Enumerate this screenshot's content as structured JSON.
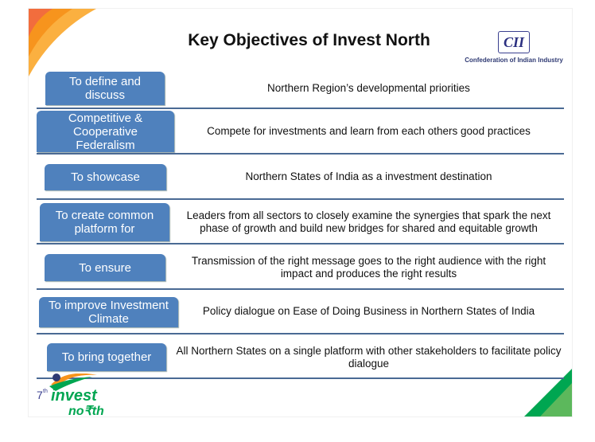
{
  "title": "Key Objectives of Invest North",
  "cii_logo": {
    "text": "CII",
    "caption": "Confederation of Indian Industry"
  },
  "objectives": [
    {
      "label": "To define and discuss",
      "description": "Northern Region’s developmental priorities"
    },
    {
      "label": "Competitive & Cooperative Federalism",
      "description": "Compete for investments and learn from each others good practices"
    },
    {
      "label": "To showcase",
      "description": "Northern States of India as a investment destination"
    },
    {
      "label": "To create common platform for",
      "description": "Leaders from all sectors to closely examine the synergies that spark the next phase of growth and build new bridges for shared and equitable growth"
    },
    {
      "label": "To ensure",
      "description": "Transmission of the right message goes to the right audience with the right impact and produces the right results"
    },
    {
      "label": "To improve Investment Climate",
      "description": "Policy dialogue on Ease of Doing Business in Northern States of India"
    },
    {
      "label": "To bring together",
      "description": "All Northern States on a single platform with other stakeholders to facilitate policy dialogue"
    }
  ],
  "event_logo": {
    "text": "7th invest north"
  },
  "colors": {
    "label_bg": "#4f81bd",
    "separator": "#4a6a94",
    "accent_orange": "#f7941d",
    "accent_green": "#00a651"
  }
}
